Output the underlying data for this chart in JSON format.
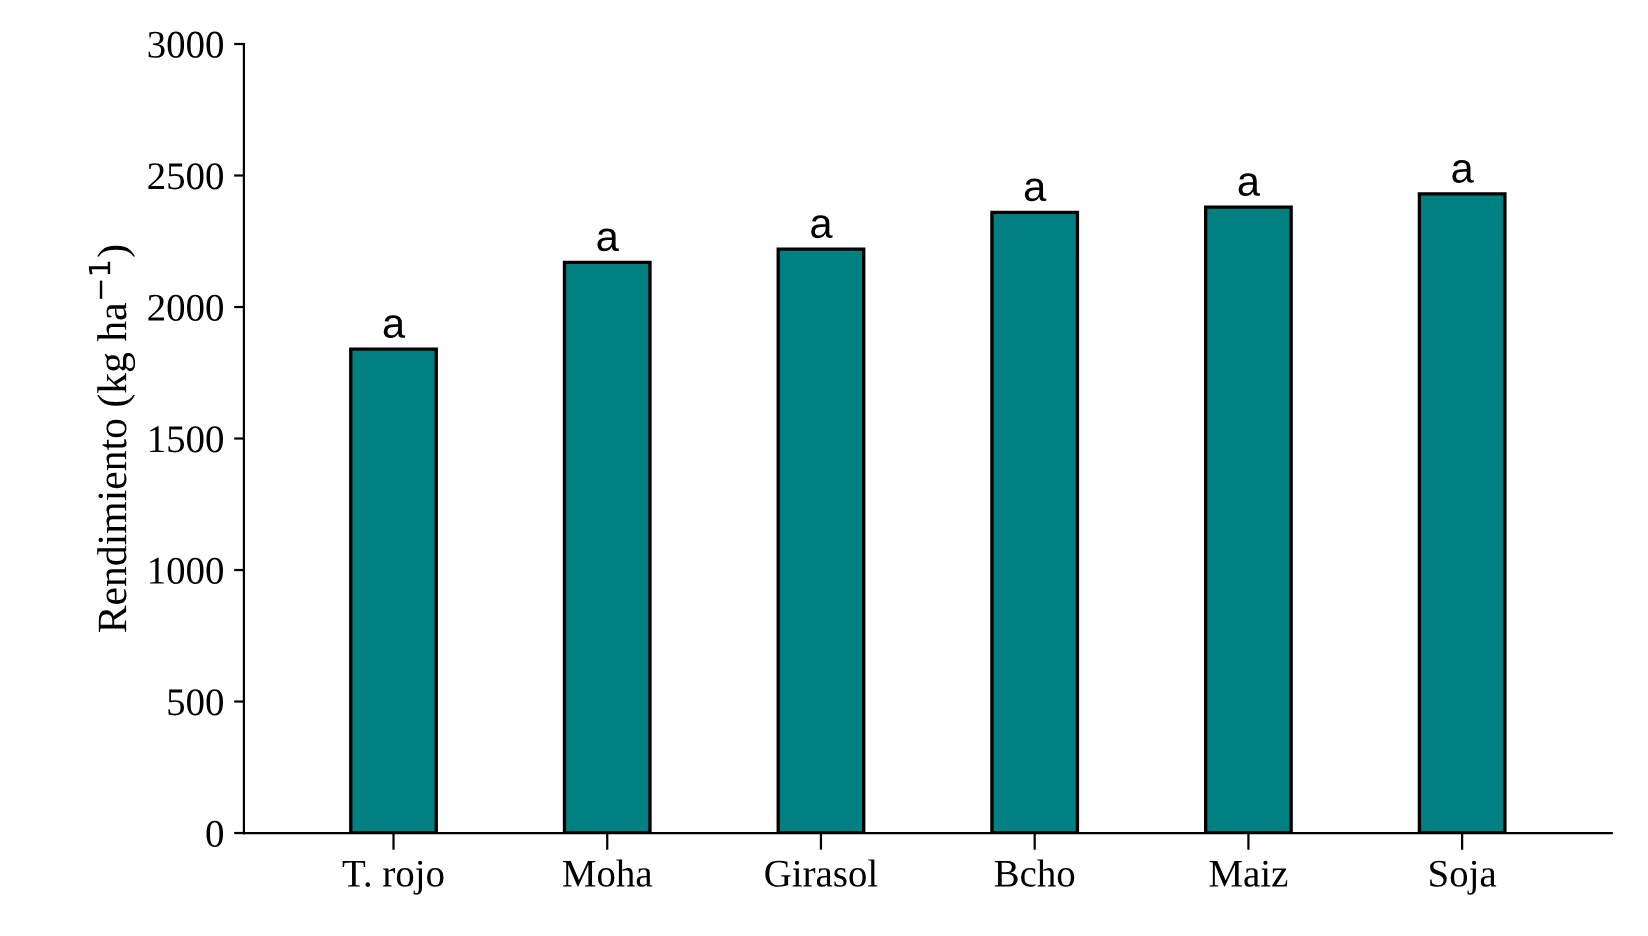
{
  "chart_data": {
    "type": "bar",
    "ylabel": "Rendimiento (kg ha$^{−1}$)",
    "categories": [
      "T. rojo",
      "Moha",
      "Girasol",
      "Bcho",
      "Maiz",
      "Soja"
    ],
    "values": [
      1840,
      2170,
      2220,
      2360,
      2380,
      2430
    ],
    "color": "#008080",
    "ylim": [
      0,
      3000
    ],
    "yticks": [
      0,
      500,
      1000,
      1500,
      2000,
      2500,
      3000
    ],
    "grid": false,
    "legend": false,
    "annotations": [
      {
        "text": "a",
        "x": "T. rojo",
        "y": 1840
      },
      {
        "text": "a",
        "x": "Moha",
        "y": 2170
      },
      {
        "text": "a",
        "x": "Girasol",
        "y": 2220
      },
      {
        "text": "a",
        "x": "Bcho",
        "y": 2360
      },
      {
        "text": "a",
        "x": "Maiz",
        "y": 2380
      },
      {
        "text": "a",
        "x": "Soja",
        "y": 2430
      }
    ]
  }
}
